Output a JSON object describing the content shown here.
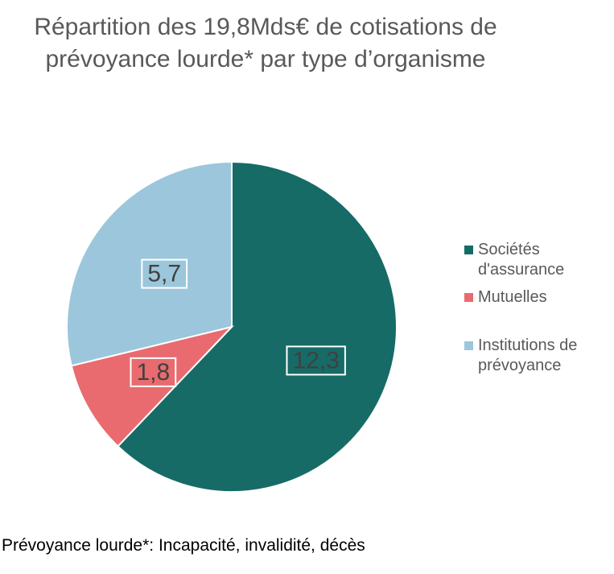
{
  "chart_data": {
    "type": "pie",
    "title_lines": [
      "Répartition des 19,8Mds€ de cotisations de",
      "prévoyance lourde* par type d’organisme"
    ],
    "categories": [
      "Sociétés d'assurance",
      "Mutuelles",
      "Institutions de prévoyance"
    ],
    "values": [
      12.3,
      1.8,
      5.7
    ],
    "value_labels": [
      "12,3",
      "1,8",
      "5,7"
    ],
    "colors": [
      "#166B66",
      "#E96B6F",
      "#9CC6DB"
    ],
    "start": "12 o'clock",
    "direction": "clockwise",
    "legend_position": "right"
  },
  "footnote": "Prévoyance lourde*: Incapacité, invalidité, décès"
}
